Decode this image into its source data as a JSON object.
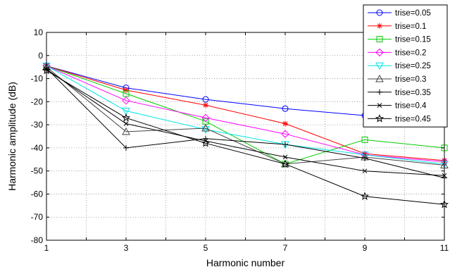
{
  "chart_data": {
    "type": "line",
    "title": "",
    "xlabel": "Harmonic number",
    "ylabel": "Harmonic amplitude (dB)",
    "x": [
      1,
      3,
      5,
      7,
      9,
      11
    ],
    "xlim": [
      1,
      11
    ],
    "ylim": [
      -80,
      10
    ],
    "xticks": [
      1,
      3,
      5,
      7,
      9,
      11
    ],
    "yticks": [
      10,
      0,
      -10,
      -20,
      -30,
      -40,
      -50,
      -60,
      -70,
      -80
    ],
    "grid": true,
    "grid_style": "dotted",
    "legend_position": "top-right",
    "series": [
      {
        "name": "trise=0.05",
        "color": "#0000ff",
        "marker": "circle",
        "values": [
          -4.5,
          -14,
          -19,
          -23,
          -26,
          -29.5
        ]
      },
      {
        "name": "trise=0.1",
        "color": "#ff0000",
        "marker": "star",
        "values": [
          -4.5,
          -15,
          -21.5,
          -29.5,
          -42.5,
          -45.5
        ]
      },
      {
        "name": "trise=0.15",
        "color": "#00cc00",
        "marker": "square",
        "values": [
          -4.5,
          -16.5,
          -28.5,
          -47,
          -36.5,
          -40
        ]
      },
      {
        "name": "trise=0.2",
        "color": "#ff00ff",
        "marker": "diamond",
        "values": [
          -4.5,
          -19.5,
          -27,
          -34,
          -43,
          -46
        ]
      },
      {
        "name": "trise=0.25",
        "color": "#00e5e5",
        "marker": "triangle-down",
        "values": [
          -4.5,
          -24,
          -32,
          -38.5,
          -43,
          -47
        ]
      },
      {
        "name": "trise=0.3",
        "color": "#444444",
        "marker": "triangle-up",
        "values": [
          -5,
          -33,
          -31.5,
          -47,
          -44,
          -47.5
        ]
      },
      {
        "name": "trise=0.35",
        "color": "#000000",
        "marker": "plus",
        "values": [
          -5.5,
          -40,
          -36,
          -38.5,
          -44.5,
          -53
        ]
      },
      {
        "name": "trise=0.4",
        "color": "#000000",
        "marker": "x",
        "values": [
          -6,
          -29.5,
          -37,
          -44,
          -50,
          -52
        ]
      },
      {
        "name": "trise=0.45",
        "color": "#000000",
        "marker": "pentagram",
        "values": [
          -6.5,
          -27,
          -38,
          -47,
          -61,
          -64.5
        ]
      }
    ]
  }
}
